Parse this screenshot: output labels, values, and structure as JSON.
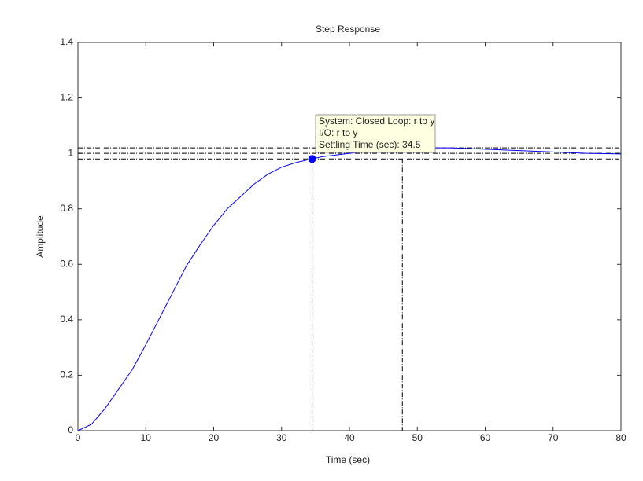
{
  "chart_data": {
    "type": "line",
    "title": "Step Response",
    "xlabel": "Time (sec)",
    "ylabel": "Amplitude",
    "x": [
      0,
      2,
      4,
      6,
      8,
      10,
      12,
      14,
      16,
      18,
      20,
      22,
      24,
      26,
      28,
      30,
      32,
      34.5,
      36,
      40,
      45,
      50,
      55,
      60,
      65,
      70,
      75,
      80
    ],
    "series": [
      {
        "color": "#0000ff",
        "values": [
          0,
          0.023,
          0.08,
          0.15,
          0.22,
          0.31,
          0.405,
          0.5,
          0.595,
          0.67,
          0.74,
          0.8,
          0.845,
          0.89,
          0.925,
          0.95,
          0.966,
          0.98,
          0.988,
          1.0,
          1.013,
          1.02,
          1.02,
          1.015,
          1.01,
          1.005,
          1.0,
          0.998
        ]
      }
    ],
    "xlim": [
      0,
      80
    ],
    "xticks": [
      0,
      10,
      20,
      30,
      40,
      50,
      60,
      70,
      80
    ],
    "ylim": [
      0,
      1.4
    ],
    "yticks": [
      0,
      0.2,
      0.4,
      0.6,
      0.8,
      1,
      1.2,
      1.4
    ],
    "grid": false,
    "hlines": [
      0.98,
      1,
      1.02
    ],
    "vlines": [
      34.5,
      47.8
    ],
    "marker": {
      "x": 34.5,
      "y": 0.98,
      "color": "#0000ff"
    },
    "annotation": [
      "System: Closed Loop: r to y",
      "I/O: r to y",
      "Settling Time (sec): 34.5"
    ]
  }
}
